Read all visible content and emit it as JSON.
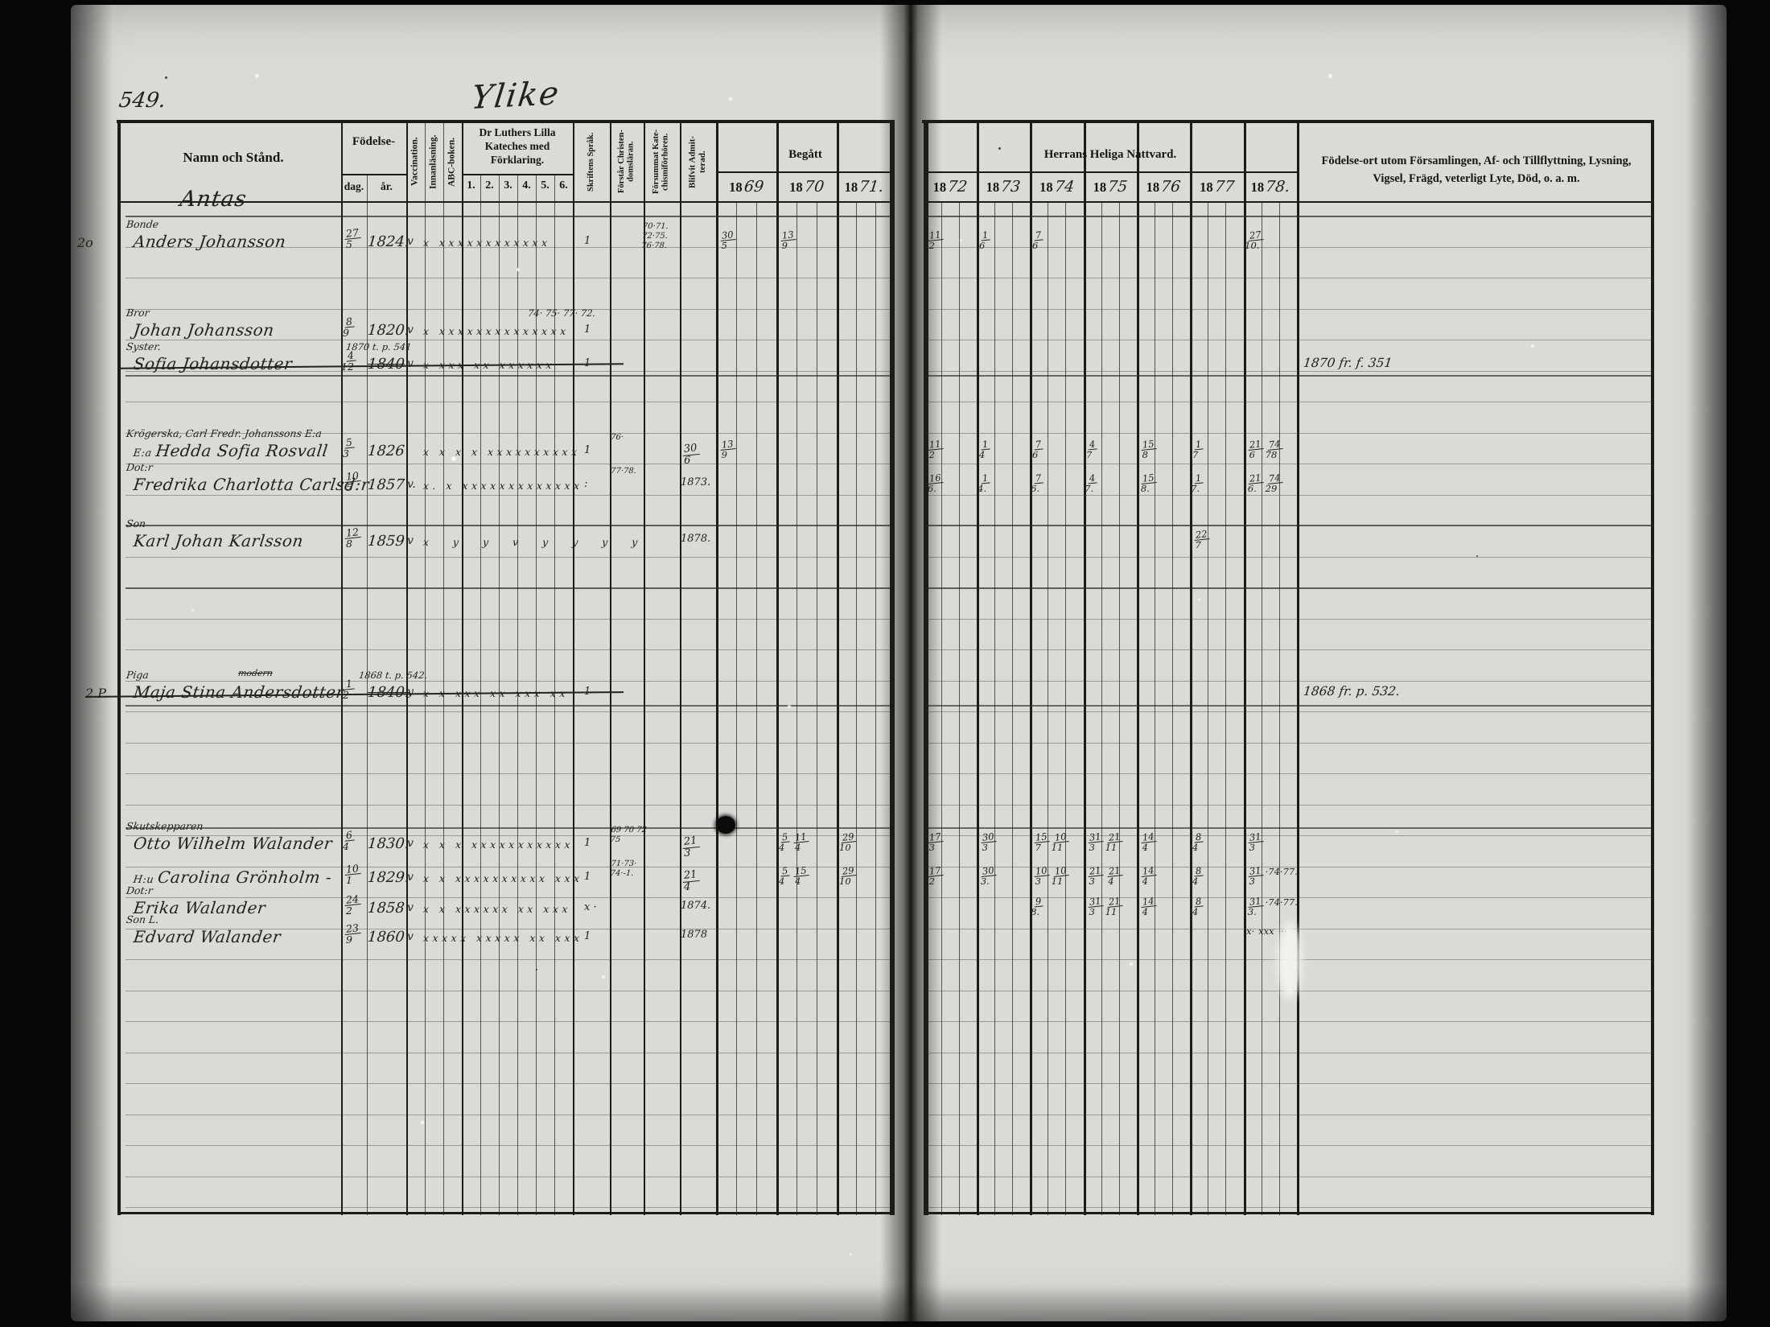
{
  "page": {
    "number": "549.",
    "title": "Ylike"
  },
  "header": {
    "name": "Namn och Stånd.",
    "birth_label": "Födelse-",
    "birth_day": "dag.",
    "birth_year": "år.",
    "col_vaccination": "Vaccination.",
    "col_innanlasning": "Innanläsning.",
    "col_abc": "ABC-boken.",
    "catechism_label": "Dr Luthers Lilla Kateches med Förklaring.",
    "catechism_sub": [
      "1.",
      "2.",
      "3.",
      "4.",
      "5.",
      "6."
    ],
    "col_sprak": "Skriftens Språk.",
    "col_forstar": "Förstår Christen-|domsläran.",
    "col_forsummat": "Försummat Kate-|chismiförhören.",
    "col_blifvit": "Blifvit Admit-|terad.",
    "begatt": "Begått",
    "nattvard": "Herrans Heliga Nattvard.",
    "year_prefix": "18",
    "years_left": [
      "69",
      "70",
      "71."
    ],
    "years_right": [
      "72",
      "73",
      "74",
      "75",
      "76",
      "77",
      "78."
    ],
    "remarks": "Födelse-ort utom Församlingen, Af- och Tillflyttning, Lysning, Vigsel, Frägd, veterligt Lyte, Död, o. a. m."
  },
  "entries": [
    {
      "id": "antas",
      "kind": "place",
      "name": "Antas"
    },
    {
      "id": "anders",
      "margin": "2o",
      "status": "Bonde",
      "name": "Anders Johansson",
      "day": "27/5",
      "year": "1824.",
      "vacc": "v",
      "marks": "x xxxxxxxxxxxx",
      "sprak": "1",
      "forsummat": "70·71.|72·75.|76·78.",
      "years": {
        "1869": "30/5",
        "1870": "13/9",
        "1872": "11/2",
        "1873": "1/6",
        "1874": "7/6",
        "1878": "27/10."
      }
    },
    {
      "id": "johan",
      "status": "Bror",
      "name": "Johan Johansson",
      "day": "8/9",
      "year": "1820.",
      "vacc": "v",
      "marks": "x xxxxxxxxxxxxxx",
      "sprak": "1",
      "note_over": "74· 75· 77· 72."
    },
    {
      "id": "sofia",
      "status": "Syster.",
      "name": "Sofia Johansdotter",
      "crossed": true,
      "day": "4/12",
      "year": "1840",
      "vacc": "v",
      "marks": "x xxx xx xxxxxx",
      "sprak": "1",
      "note_over": "1870 t. p. 541",
      "remark": "1870 fr. f. 351"
    },
    {
      "id": "hedda",
      "status": "Krögerska, Carl Fredr. Johanssons E:a",
      "prefix": "E:a",
      "name": "Hedda Sofia Rosvall",
      "day": "5/3",
      "year": "1826",
      "marks": "x x x x xxxxxxxxxx",
      "sprak": "1",
      "forstar": "76·",
      "admit": "30/6",
      "years": {
        "1869": "13/9",
        "1872": "11/2",
        "1873": "1/4",
        "1874": "7/6",
        "1875": "4/7",
        "1876": "15/8",
        "1877": "1/7",
        "1878": "21/6 74/78"
      }
    },
    {
      "id": "fredrika",
      "status": "Dot:r",
      "name": "Fredrika Charlotta Carlsd:r",
      "day": "10/5",
      "year": "1857",
      "vacc": "v.",
      "marks": "x. x xxxxxxxxxxxxx",
      "sprak": ":",
      "forstar": "77·78.",
      "admit": "1873.",
      "years": {
        "1872": "16/6.",
        "1873": "1/4.",
        "1874": "7/6.",
        "1875": "4/7.",
        "1876": "15/8.",
        "1877": "1/7.",
        "1878": "21/6. 74/29"
      }
    },
    {
      "id": "karl",
      "status": "Son",
      "name": "Karl Johan Karlsson",
      "day": "12/8",
      "year": "1859",
      "vacc": "v",
      "marks": "x y y v y y y y",
      "marks_wide": true,
      "admit": "1878.",
      "years": {
        "1877": "22/7"
      }
    },
    {
      "id": "maja",
      "margin": "2.P.",
      "status": "Piga",
      "over_name": "modern",
      "name": "Maja Stina Andersdotter",
      "crossed": true,
      "day": "1/2",
      "year": "1840.",
      "vacc": "y",
      "marks": "x x xxx xx xxx xx",
      "sprak": "1",
      "note_over": "1868 t. p. 542.",
      "remark": "1868 fr. p. 532."
    },
    {
      "id": "otto",
      "status": "Skutskepparen",
      "name": "Otto Wilhelm Walander",
      "day": "6/4",
      "year": "1830.",
      "vacc": "v",
      "marks": "x x x xxxxxxxxxxx",
      "sprak": "1",
      "forstar": "69 70 72|75",
      "admit": "21/3",
      "years": {
        "1870": "5/4 11/4",
        "1871": "29/10",
        "1872": "17/3",
        "1873": "30/3",
        "1874": "15/7 10/11",
        "1875": "31/3 21/11",
        "1876": "14/4",
        "1877": "8/4",
        "1878": "31/3"
      }
    },
    {
      "id": "carolina",
      "prefix": "H:u",
      "name": "Carolina Grönholm  -",
      "day": "10/1",
      "year": "1829.",
      "vacc": "v",
      "marks": "x x xxxxxxxxxx xxx",
      "sprak": "1",
      "forstar": "71·73·|74·-1.",
      "admit": "21/4",
      "years": {
        "1870": "5/4 15/4",
        "1871": "29/10",
        "1872": "17/2",
        "1873": "30/3.",
        "1874": "10/3 10/11",
        "1875": "21/3 21/4",
        "1876": "14/4",
        "1877": "8/4",
        "1878": "31/3 ·74·77."
      }
    },
    {
      "id": "erika",
      "status": "Dot:r",
      "name": "Erika Walander",
      "day": "24/2",
      "year": "1858",
      "vacc": "v",
      "marks": "x x xxxxxx xx xxx",
      "sprak": "x ·",
      "admit": "1874.",
      "years": {
        "1874": "9/8.",
        "1875": "31/3 21/11",
        "1876": "14/4",
        "1877": "8/4",
        "1878": "31/3. ·74·77."
      }
    },
    {
      "id": "edvard",
      "status": "Son L.",
      "name": "Edvard Walander",
      "day": "23/9",
      "year": "1860",
      "vacc": "v",
      "marks": "xxxxx xxxxx xx xxx",
      "sprak": "1",
      "admit": "1878",
      "years": {
        "1878": "x· xxx ···"
      }
    }
  ]
}
